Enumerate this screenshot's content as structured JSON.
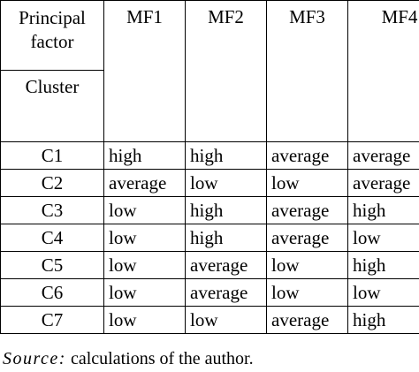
{
  "table": {
    "header": {
      "principal_line1": "Principal",
      "principal_line2": "factor",
      "cluster": "Cluster",
      "columns": [
        "MF1",
        "MF2",
        "MF3",
        "MF4"
      ]
    },
    "rows": [
      {
        "cluster": "C1",
        "values": [
          "high",
          "high",
          "average",
          "average"
        ]
      },
      {
        "cluster": "C2",
        "values": [
          "average",
          "low",
          "low",
          "average"
        ]
      },
      {
        "cluster": "C3",
        "values": [
          "low",
          "high",
          "average",
          "high"
        ]
      },
      {
        "cluster": "C4",
        "values": [
          "low",
          "high",
          "average",
          "low"
        ]
      },
      {
        "cluster": "C5",
        "values": [
          "low",
          "average",
          "low",
          "high"
        ]
      },
      {
        "cluster": "C6",
        "values": [
          "low",
          "average",
          "low",
          "low"
        ]
      },
      {
        "cluster": "C7",
        "values": [
          "low",
          "low",
          "average",
          "high"
        ]
      }
    ]
  },
  "source": {
    "label": "Source:",
    "text": "calculations of the author."
  }
}
